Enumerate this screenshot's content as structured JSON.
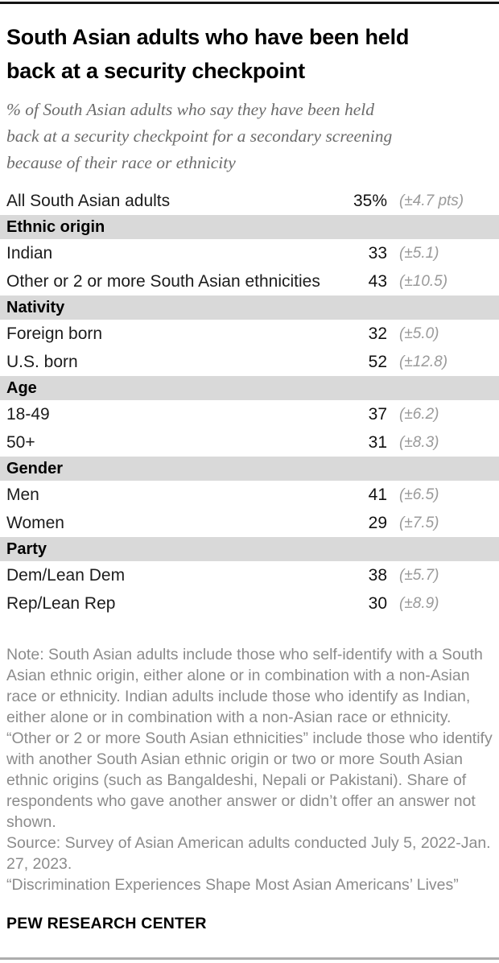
{
  "header": {
    "title_lines": [
      "South Asian adults who have been held",
      "back at a security checkpoint"
    ],
    "subtitle_lines": [
      "% of South Asian adults who say they have been held",
      "back at a security checkpoint for a secondary screening",
      "because of their race or ethnicity"
    ]
  },
  "chart_data": {
    "type": "table",
    "title": "South Asian adults who have been held back at a security checkpoint",
    "subtitle": "% of South Asian adults who say they have been held back at a security checkpoint for a secondary screening because of their race or ethnicity",
    "value_unit": "%",
    "columns": [
      "group",
      "percent",
      "margin_of_error"
    ],
    "rows": [
      {
        "kind": "data",
        "label": "All South Asian adults",
        "value": 35,
        "value_display": "35%",
        "moe": 4.7,
        "moe_display": "(±4.7 pts)"
      },
      {
        "kind": "section",
        "label": "Ethnic origin"
      },
      {
        "kind": "data",
        "label": "Indian",
        "value": 33,
        "value_display": "33",
        "moe": 5.1,
        "moe_display": "(±5.1)"
      },
      {
        "kind": "data",
        "label": "Other or 2 or more South Asian ethnicities",
        "value": 43,
        "value_display": "43",
        "moe": 10.5,
        "moe_display": "(±10.5)"
      },
      {
        "kind": "section",
        "label": "Nativity"
      },
      {
        "kind": "data",
        "label": "Foreign born",
        "value": 32,
        "value_display": "32",
        "moe": 5.0,
        "moe_display": "(±5.0)"
      },
      {
        "kind": "data",
        "label": "U.S. born",
        "value": 52,
        "value_display": "52",
        "moe": 12.8,
        "moe_display": "(±12.8)"
      },
      {
        "kind": "section",
        "label": "Age"
      },
      {
        "kind": "data",
        "label": "18-49",
        "value": 37,
        "value_display": "37",
        "moe": 6.2,
        "moe_display": "(±6.2)"
      },
      {
        "kind": "data",
        "label": "50+",
        "value": 31,
        "value_display": "31",
        "moe": 8.3,
        "moe_display": "(±8.3)"
      },
      {
        "kind": "section",
        "label": "Gender"
      },
      {
        "kind": "data",
        "label": "Men",
        "value": 41,
        "value_display": "41",
        "moe": 6.5,
        "moe_display": "(±6.5)"
      },
      {
        "kind": "data",
        "label": "Women",
        "value": 29,
        "value_display": "29",
        "moe": 7.5,
        "moe_display": "(±7.5)"
      },
      {
        "kind": "section",
        "label": "Party"
      },
      {
        "kind": "data",
        "label": "Dem/Lean Dem",
        "value": 38,
        "value_display": "38",
        "moe": 5.7,
        "moe_display": "(±5.7)"
      },
      {
        "kind": "data",
        "label": "Rep/Lean Rep",
        "value": 30,
        "value_display": "30",
        "moe": 8.9,
        "moe_display": "(±8.9)"
      }
    ]
  },
  "notes": {
    "note": "Note: South Asian adults include those who self-identify with a South Asian ethnic origin, either alone or in combination with a non-Asian race or ethnicity. Indian adults include those who identify as Indian, either alone or in combination with a non-Asian race or ethnicity. “Other or 2 or more South Asian ethnicities” include those who identify with another South Asian ethnic origin or two or more South Asian ethnic origins (such as Bangaldeshi, Nepali or Pakistani). Share of respondents who gave another answer or didn’t offer an answer not shown.",
    "source": "Source: Survey of Asian American adults conducted July 5, 2022-Jan. 27, 2023.",
    "report": "“Discrimination Experiences Shape Most Asian Americans’ Lives”"
  },
  "footer": {
    "wordmark": "PEW RESEARCH CENTER"
  },
  "colors": {
    "section_band": "#d9d9d9",
    "title_text": "#000000",
    "subtitle_text": "#6b6b6b",
    "note_text": "#8b8b8b",
    "moe_text": "#9a9a9a",
    "top_rule": "#141414",
    "bottom_rule": "#adadad"
  }
}
